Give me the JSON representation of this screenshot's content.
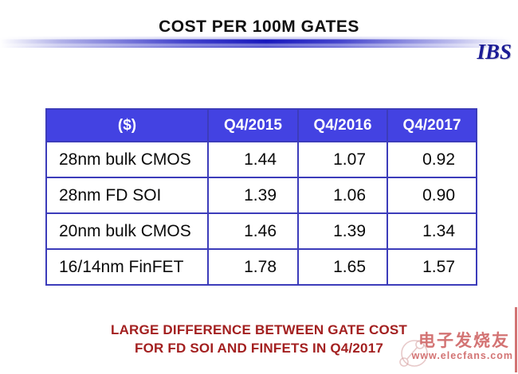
{
  "header": {
    "title": "COST PER 100M GATES",
    "logo_text": "IBS"
  },
  "table": {
    "columns": [
      "($)",
      "Q4/2015",
      "Q4/2016",
      "Q4/2017"
    ],
    "rows": [
      {
        "label": "28nm bulk CMOS",
        "values": [
          "1.44",
          "1.07",
          "0.92"
        ]
      },
      {
        "label": "28nm FD SOI",
        "values": [
          "1.39",
          "1.06",
          "0.90"
        ]
      },
      {
        "label": "20nm bulk CMOS",
        "values": [
          "1.46",
          "1.39",
          "1.34"
        ]
      },
      {
        "label": "16/14nm FinFET",
        "values": [
          "1.78",
          "1.65",
          "1.57"
        ]
      }
    ]
  },
  "caption": {
    "line1": "LARGE DIFFERENCE BETWEEN GATE COST",
    "line2": "FOR FD SOI AND FINFETS IN Q4/2017"
  },
  "watermark": {
    "site_name": "电子发烧友",
    "site_url": "www.elecfans.com"
  },
  "colors": {
    "header_bg": "#4342e2",
    "table_border": "#3c3cba",
    "caption_red": "#a32020",
    "logo_navy": "#1c1c96",
    "watermark_red": "#cc5b5b",
    "divider_blue": "#1717bd"
  },
  "chart_data": {
    "type": "table",
    "title": "COST PER 100M GATES",
    "unit": "$",
    "columns": [
      "Q4/2015",
      "Q4/2016",
      "Q4/2017"
    ],
    "rows": [
      {
        "label": "28nm bulk CMOS",
        "values": [
          1.44,
          1.07,
          0.92
        ]
      },
      {
        "label": "28nm FD SOI",
        "values": [
          1.39,
          1.06,
          0.9
        ]
      },
      {
        "label": "20nm bulk CMOS",
        "values": [
          1.46,
          1.39,
          1.34
        ]
      },
      {
        "label": "16/14nm FinFET",
        "values": [
          1.78,
          1.65,
          1.57
        ]
      }
    ],
    "note": "LARGE DIFFERENCE BETWEEN GATE COST FOR FD SOI AND FINFETS IN Q4/2017"
  }
}
